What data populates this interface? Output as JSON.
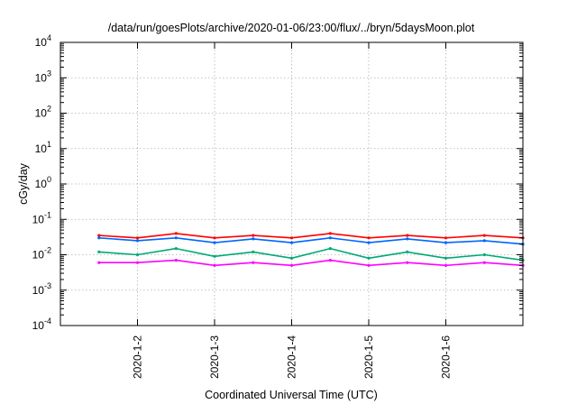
{
  "chart_data": {
    "type": "line",
    "title": "/data/run/goesPlots/archive/2020-01-06/23:00/flux/../bryn/5daysMoon.plot",
    "xlabel": "Coordinated Universal Time (UTC)",
    "ylabel": "cGy/day",
    "yscale": "log",
    "ylim": [
      0.0001,
      10000
    ],
    "xlim": [
      "2020-01-01 00:00",
      "2020-01-07 00:00"
    ],
    "grid": true,
    "y_ticks": [
      {
        "base": "10",
        "exp": "4",
        "value": 10000
      },
      {
        "base": "10",
        "exp": "3",
        "value": 1000
      },
      {
        "base": "10",
        "exp": "2",
        "value": 100
      },
      {
        "base": "10",
        "exp": "1",
        "value": 10
      },
      {
        "base": "10",
        "exp": "0",
        "value": 1
      },
      {
        "base": "10",
        "exp": "-1",
        "value": 0.1
      },
      {
        "base": "10",
        "exp": "-2",
        "value": 0.01
      },
      {
        "base": "10",
        "exp": "-3",
        "value": 0.001
      },
      {
        "base": "10",
        "exp": "-4",
        "value": 0.0001
      }
    ],
    "x_ticks": [
      {
        "label": "2020-1-2",
        "value": "2020-01-02 00:00"
      },
      {
        "label": "2020-1-3",
        "value": "2020-01-03 00:00"
      },
      {
        "label": "2020-1-4",
        "value": "2020-01-04 00:00"
      },
      {
        "label": "2020-1-5",
        "value": "2020-01-05 00:00"
      },
      {
        "label": "2020-1-6",
        "value": "2020-01-06 00:00"
      }
    ],
    "x": [
      "2020-01-01 12:00",
      "2020-01-02 00:00",
      "2020-01-02 12:00",
      "2020-01-03 00:00",
      "2020-01-03 12:00",
      "2020-01-04 00:00",
      "2020-01-04 12:00",
      "2020-01-05 00:00",
      "2020-01-05 12:00",
      "2020-01-06 00:00",
      "2020-01-06 12:00",
      "2020-01-07 00:00"
    ],
    "series": [
      {
        "color": "#ff0000",
        "values": [
          0.035,
          0.03,
          0.04,
          0.03,
          0.035,
          0.03,
          0.04,
          0.03,
          0.035,
          0.03,
          0.035,
          0.03
        ]
      },
      {
        "color": "#0066ff",
        "values": [
          0.03,
          0.025,
          0.03,
          0.022,
          0.028,
          0.022,
          0.03,
          0.022,
          0.028,
          0.022,
          0.025,
          0.02
        ]
      },
      {
        "color": "#00aa77",
        "values": [
          0.012,
          0.01,
          0.015,
          0.009,
          0.012,
          0.008,
          0.015,
          0.008,
          0.012,
          0.008,
          0.01,
          0.007
        ]
      },
      {
        "color": "#ff00ff",
        "values": [
          0.006,
          0.006,
          0.007,
          0.005,
          0.006,
          0.005,
          0.007,
          0.005,
          0.006,
          0.005,
          0.006,
          0.005
        ]
      }
    ]
  }
}
